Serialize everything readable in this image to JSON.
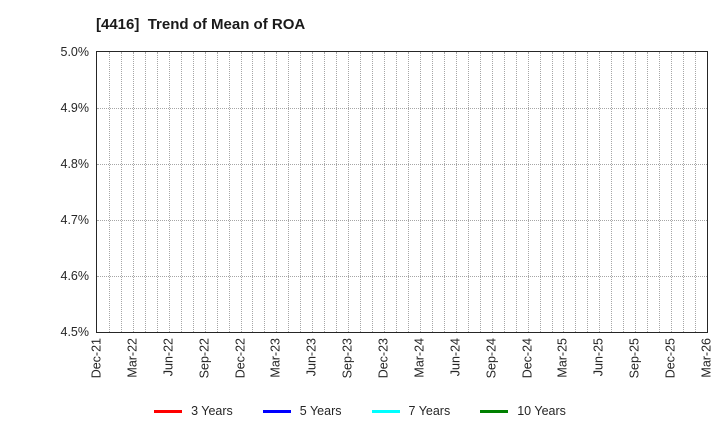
{
  "chart_data": {
    "type": "line",
    "title": "[4416]  Trend of Mean of ROA",
    "xlabel": "",
    "ylabel": "",
    "x_categories": [
      "Dec-21",
      "Mar-22",
      "Jun-22",
      "Sep-22",
      "Dec-22",
      "Mar-23",
      "Jun-23",
      "Sep-23",
      "Dec-23",
      "Mar-24",
      "Jun-24",
      "Sep-24",
      "Dec-24",
      "Mar-25",
      "Jun-25",
      "Sep-25",
      "Dec-25",
      "Mar-26"
    ],
    "y_tick_labels": [
      "5.0%",
      "4.9%",
      "4.8%",
      "4.7%",
      "4.6%",
      "4.5%"
    ],
    "ylim": [
      4.5,
      5.0
    ],
    "y_unit": "%",
    "grid": "dotted gray; vertical line every month, horizontal line every 0.1%",
    "legend_position": "bottom-center",
    "series": [
      {
        "name": "3 Years",
        "color": "#ff0000",
        "values": []
      },
      {
        "name": "5 Years",
        "color": "#0000ff",
        "values": []
      },
      {
        "name": "7 Years",
        "color": "#00ffff",
        "values": []
      },
      {
        "name": "10 Years",
        "color": "#008000",
        "values": []
      }
    ],
    "plot_content": "empty - no data lines visible within displayed range"
  },
  "colors": {
    "background": "#ffffff",
    "axis_border": "#262626",
    "gridline": "#a6a6a6",
    "tick_text": "#262626",
    "title_text": "#1a1a1a"
  }
}
